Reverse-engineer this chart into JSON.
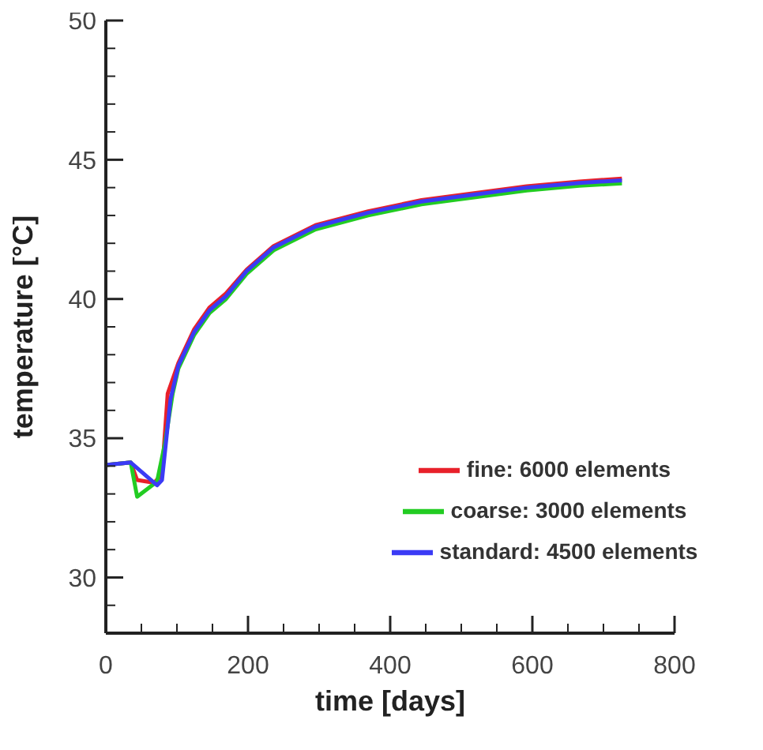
{
  "chart_data": {
    "type": "line",
    "xlabel": "time [days]",
    "ylabel": "temperature [°C]",
    "xlim": [
      0,
      800
    ],
    "ylim": [
      28,
      50
    ],
    "xticks": [
      0,
      {
        "value": 50,
        "label": null
      },
      {
        "value": 100,
        "label": null
      },
      {
        "value": 150,
        "label": null
      },
      200,
      {
        "value": 250,
        "label": null
      },
      {
        "value": 300,
        "label": null
      },
      {
        "value": 350,
        "label": null
      },
      400,
      {
        "value": 450,
        "label": null
      },
      {
        "value": 500,
        "label": null
      },
      {
        "value": 550,
        "label": null
      },
      600,
      {
        "value": 650,
        "label": null
      },
      {
        "value": 700,
        "label": null
      },
      {
        "value": 750,
        "label": null
      },
      800
    ],
    "yticks": [
      {
        "value": 29,
        "label": null
      },
      30,
      {
        "value": 31,
        "label": null
      },
      {
        "value": 32,
        "label": null
      },
      {
        "value": 33,
        "label": null
      },
      {
        "value": 34,
        "label": null
      },
      35,
      {
        "value": 36,
        "label": null
      },
      {
        "value": 37,
        "label": null
      },
      {
        "value": 38,
        "label": null
      },
      {
        "value": 39,
        "label": null
      },
      40,
      {
        "value": 41,
        "label": null
      },
      {
        "value": 42,
        "label": null
      },
      {
        "value": 43,
        "label": null
      },
      {
        "value": 44,
        "label": null
      },
      45,
      {
        "value": 46,
        "label": null
      },
      {
        "value": 47,
        "label": null
      },
      {
        "value": 48,
        "label": null
      },
      {
        "value": 49,
        "label": null
      },
      50
    ],
    "grid": false,
    "legend": "bottom right",
    "marker": "none",
    "line_style": "solid",
    "series": [
      {
        "name": "fine: 6000 elements",
        "color": "#e8202a",
        "x": [
          0,
          35,
          44,
          68,
          79,
          87,
          102,
          124,
          146,
          169,
          198,
          236,
          295,
          369,
          444,
          518,
          592,
          666,
          726
        ],
        "values": [
          34.04,
          34.13,
          33.5,
          33.4,
          33.7,
          36.6,
          37.7,
          38.9,
          39.7,
          40.2,
          41.05,
          41.9,
          42.65,
          43.15,
          43.55,
          43.8,
          44.05,
          44.22,
          44.32
        ]
      },
      {
        "name": "coarse: 3000 elements",
        "color": "#22cc22",
        "x": [
          0,
          35,
          44,
          72,
          83,
          94,
          102,
          124,
          146,
          169,
          198,
          236,
          295,
          369,
          444,
          518,
          592,
          666,
          726
        ],
        "values": [
          34.04,
          34.13,
          32.9,
          33.44,
          34.8,
          36.6,
          37.5,
          38.7,
          39.5,
          40.0,
          40.9,
          41.75,
          42.5,
          43.0,
          43.4,
          43.65,
          43.9,
          44.07,
          44.15
        ]
      },
      {
        "name": "standard: 4500 elements",
        "color": "#3b3bf5",
        "x": [
          0,
          35,
          72,
          79,
          91,
          102,
          124,
          146,
          169,
          198,
          236,
          295,
          369,
          444,
          518,
          592,
          666,
          726
        ],
        "values": [
          34.04,
          34.13,
          33.31,
          33.5,
          36.4,
          37.6,
          38.8,
          39.6,
          40.1,
          41.0,
          41.85,
          42.6,
          43.1,
          43.5,
          43.75,
          44.0,
          44.17,
          44.26
        ]
      }
    ]
  }
}
